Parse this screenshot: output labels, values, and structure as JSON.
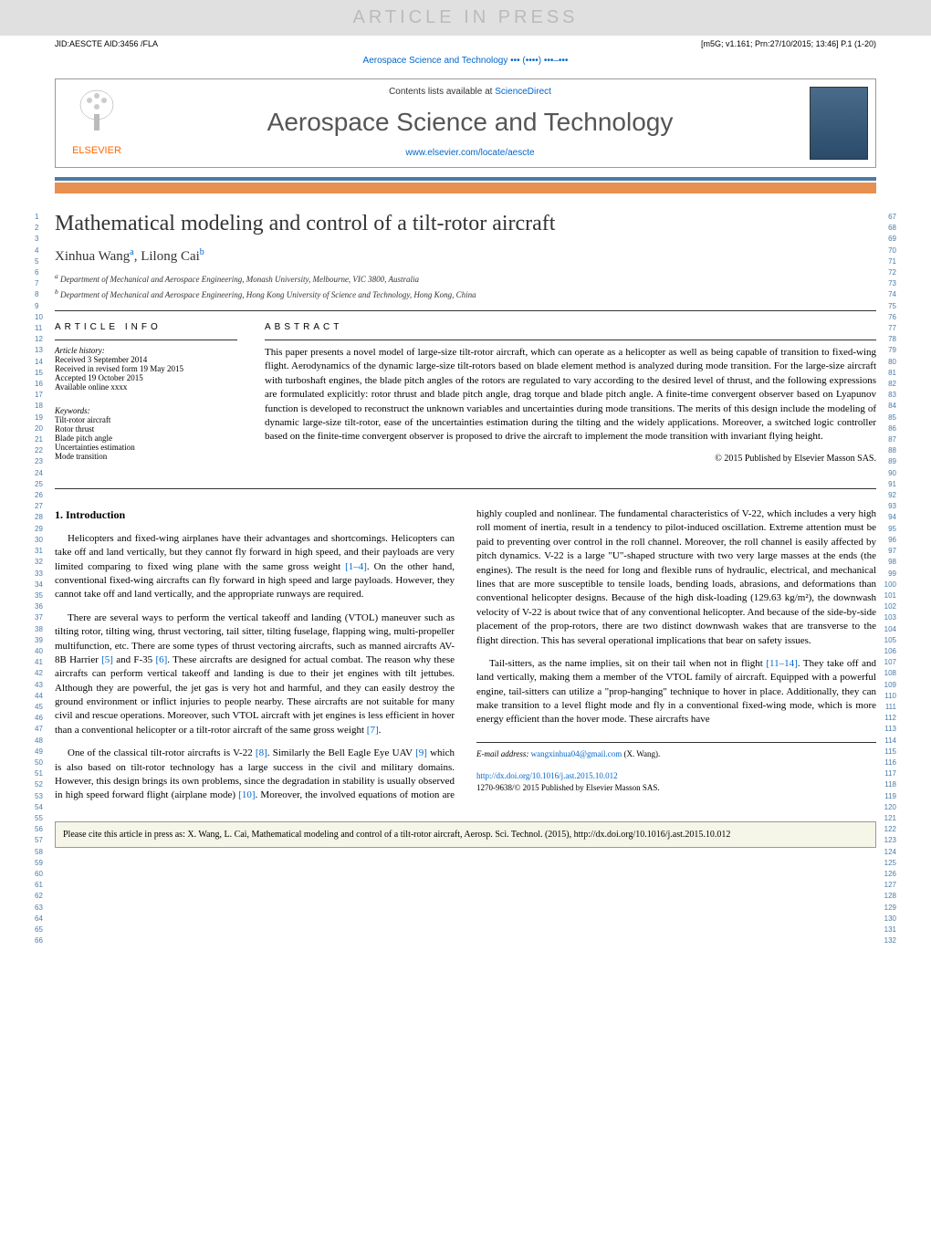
{
  "watermark": "ARTICLE IN PRESS",
  "top_meta": {
    "left": "JID:AESCTE   AID:3456 /FLA",
    "right": "[m5G; v1.161; Prn:27/10/2015; 13:46] P.1 (1-20)"
  },
  "journal_ref": "Aerospace Science and Technology ••• (••••) •••–•••",
  "header": {
    "contents_text": "Contents lists available at ",
    "contents_link": "ScienceDirect",
    "journal_title": "Aerospace Science and Technology",
    "journal_url": "www.elsevier.com/locate/aescte",
    "publisher": "ELSEVIER"
  },
  "article": {
    "title": "Mathematical modeling and control of a tilt-rotor aircraft",
    "authors": [
      {
        "name": "Xinhua Wang",
        "sup": "a"
      },
      {
        "name": "Lilong Cai",
        "sup": "b"
      }
    ],
    "affiliations": [
      {
        "sup": "a",
        "text": "Department of Mechanical and Aerospace Engineering, Monash University, Melbourne, VIC 3800, Australia"
      },
      {
        "sup": "b",
        "text": "Department of Mechanical and Aerospace Engineering, Hong Kong University of Science and Technology, Hong Kong, China"
      }
    ]
  },
  "article_info": {
    "header": "ARTICLE INFO",
    "history_label": "Article history:",
    "history": [
      "Received 3 September 2014",
      "Received in revised form 19 May 2015",
      "Accepted 19 October 2015",
      "Available online xxxx"
    ],
    "keywords_label": "Keywords:",
    "keywords": [
      "Tilt-rotor aircraft",
      "Rotor thrust",
      "Blade pitch angle",
      "Uncertainties estimation",
      "Mode transition"
    ]
  },
  "abstract": {
    "header": "ABSTRACT",
    "text": "This paper presents a novel model of large-size tilt-rotor aircraft, which can operate as a helicopter as well as being capable of transition to fixed-wing flight. Aerodynamics of the dynamic large-size tilt-rotors based on blade element method is analyzed during mode transition. For the large-size aircraft with turboshaft engines, the blade pitch angles of the rotors are regulated to vary according to the desired level of thrust, and the following expressions are formulated explicitly: rotor thrust and blade pitch angle, drag torque and blade pitch angle. A finite-time convergent observer based on Lyapunov function is developed to reconstruct the unknown variables and uncertainties during mode transitions. The merits of this design include the modeling of dynamic large-size tilt-rotor, ease of the uncertainties estimation during the tilting and the widely applications. Moreover, a switched logic controller based on the finite-time convergent observer is proposed to drive the aircraft to implement the mode transition with invariant flying height.",
    "copyright": "© 2015 Published by Elsevier Masson SAS."
  },
  "sections": {
    "intro_title": "1. Introduction",
    "para1": "Helicopters and fixed-wing airplanes have their advantages and shortcomings. Helicopters can take off and land vertically, but they cannot fly forward in high speed, and their payloads are very limited comparing to fixed wing plane with the same gross weight ",
    "ref1": "[1–4]",
    "para1b": ". On the other hand, conventional fixed-wing aircrafts can fly forward in high speed and large payloads. However, they cannot take off and land vertically, and the appropriate runways are required.",
    "para2": "There are several ways to perform the vertical takeoff and landing (VTOL) maneuver such as tilting rotor, tilting wing, thrust vectoring, tail sitter, tilting fuselage, flapping wing, multi-propeller multifunction, etc. There are some types of thrust vectoring aircrafts, such as manned aircrafts AV-8B Harrier ",
    "ref5": "[5]",
    "para2b": " and F-35 ",
    "ref6": "[6]",
    "para2c": ". These aircrafts are designed for actual combat. The reason why these aircrafts can perform vertical takeoff and landing is due to their jet engines with tilt jettubes. Although they are powerful, the jet gas is very hot and harmful, and they can easily destroy the ground environment or inflict injuries to people nearby. These aircrafts are not suitable for many civil and rescue operations. Moreover, such VTOL aircraft with jet engines is less efficient in hover than a conventional helicopter or a tilt-rotor aircraft of the same gross weight ",
    "ref7": "[7]",
    "para2d": ".",
    "para3": "One of the classical tilt-rotor aircrafts is V-22 ",
    "ref8": "[8]",
    "para3b": ". Similarly the Bell Eagle Eye UAV ",
    "ref9": "[9]",
    "para3c": " which is also based on tilt-rotor technology has a large success in the civil and military domains. However, this design brings its own problems, since the degradation in stability is usually observed in high speed forward flight (airplane mode) ",
    "ref10": "[10]",
    "para3d": ". Moreover, the involved equations of motion are highly coupled and nonlinear. The fundamental characteristics of V-22, which includes a very high roll moment of inertia, result in a tendency to pilot-induced oscillation. Extreme attention must be paid to preventing over control in the roll channel. Moreover, the roll channel is easily affected by pitch dynamics. V-22 is a large \"U\"-shaped structure with two very large masses at the ends (the engines). The result is the need for long and flexible runs of hydraulic, electrical, and mechanical lines that are more susceptible to tensile loads, bending loads, abrasions, and deformations than conventional helicopter designs. Because of the high disk-loading (129.63 kg/m²), the downwash velocity of V-22 is about twice that of any conventional helicopter. And because of the side-by-side placement of the prop-rotors, there are two distinct downwash wakes that are transverse to the flight direction. This has several operational implications that bear on safety issues.",
    "para4": "Tail-sitters, as the name implies, sit on their tail when not in flight ",
    "ref11": "[11–14]",
    "para4b": ". They take off and land vertically, making them a member of the VTOL family of aircraft. Equipped with a powerful engine, tail-sitters can utilize a \"prop-hanging\" technique to hover in place. Additionally, they can make transition to a level flight mode and fly in a conventional fixed-wing mode, which is more energy efficient than the hover mode. These aircrafts have"
  },
  "footer": {
    "email_label": "E-mail address: ",
    "email": "wangxinhua04@gmail.com",
    "email_author": " (X. Wang).",
    "doi": "http://dx.doi.org/10.1016/j.ast.2015.10.012",
    "issn": "1270-9638/© 2015 Published by Elsevier Masson SAS."
  },
  "cite_box": "Please cite this article in press as: X. Wang, L. Cai, Mathematical modeling and control of a tilt-rotor aircraft, Aerosp. Sci. Technol. (2015), http://dx.doi.org/10.1016/j.ast.2015.10.012",
  "line_numbers": {
    "left_start": 1,
    "left_end": 66,
    "right_start": 67,
    "right_end": 132
  },
  "colors": {
    "link": "#0066cc",
    "orange": "#ff6600",
    "bar_blue": "#4a7ba8",
    "bar_orange": "#e89050"
  }
}
